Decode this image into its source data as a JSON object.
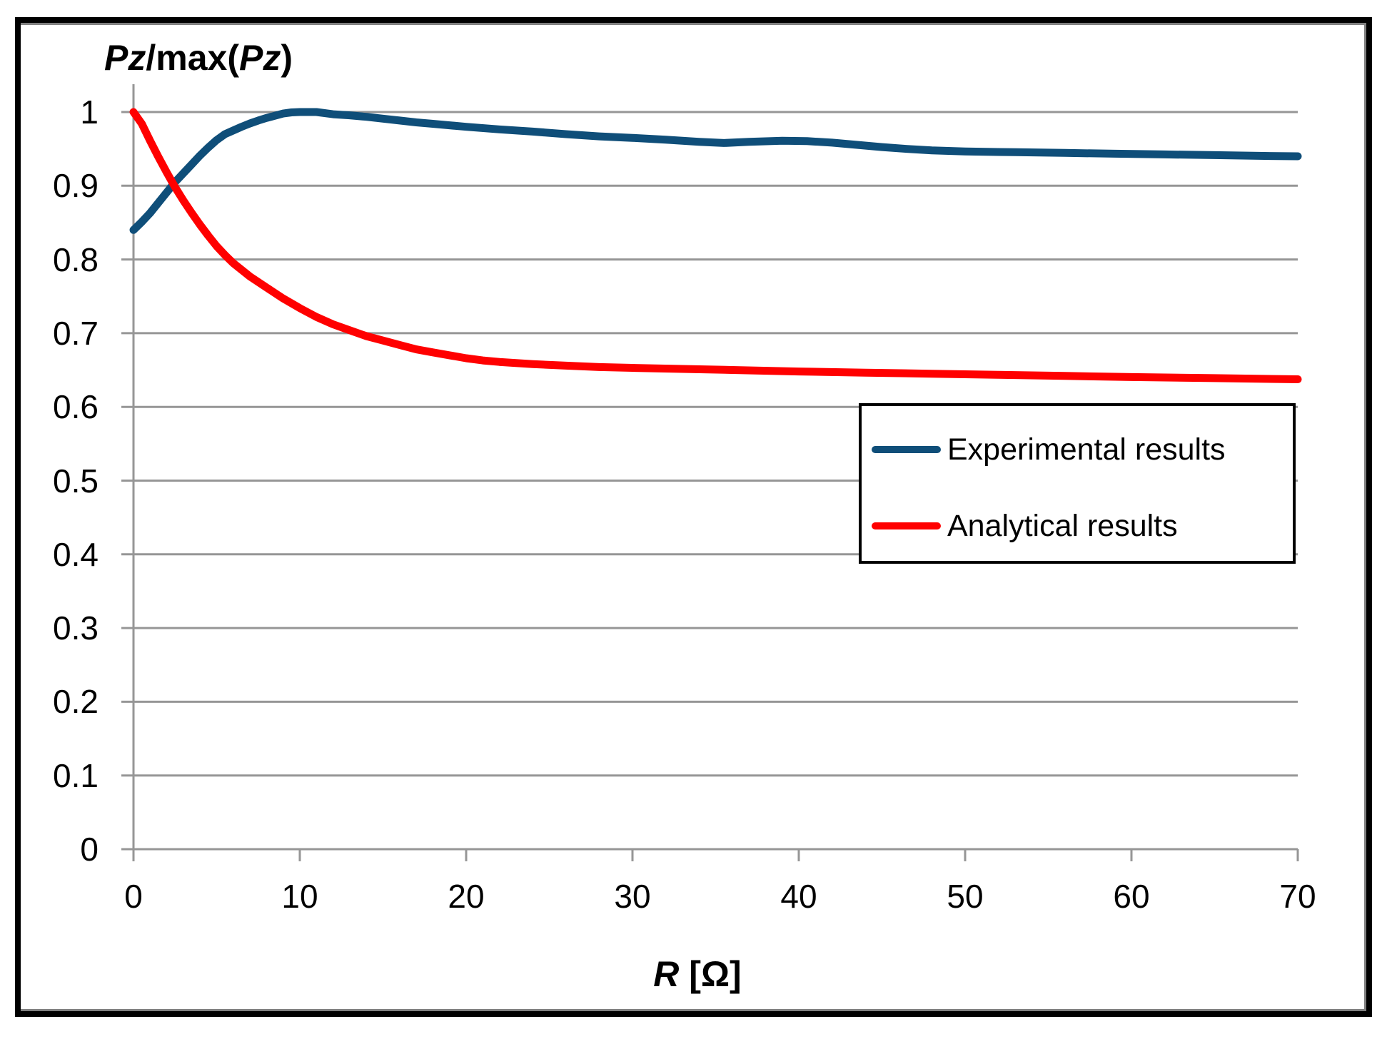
{
  "chart_data": {
    "type": "line",
    "title": "Pz/max(Pz)",
    "title_parts": [
      "Pz",
      "/max(",
      "Pz",
      ")"
    ],
    "xlabel": "R [Ω]",
    "xlabel_parts": [
      "R",
      " [Ω]"
    ],
    "ylabel": "Pz/max(Pz)",
    "xlim": [
      0,
      70
    ],
    "ylim": [
      0,
      1
    ],
    "x_ticks": [
      "0",
      "10",
      "20",
      "30",
      "40",
      "50",
      "60",
      "70"
    ],
    "y_ticks": [
      "1",
      "0.9",
      "0.8",
      "0.7",
      "0.6",
      "0.5",
      "0.4",
      "0.3",
      "0.2",
      "0.1",
      "0"
    ],
    "grid": "horizontal",
    "legend_position": "middle-right",
    "series": [
      {
        "name": "Experimental results",
        "color": "#0F4E79",
        "points": [
          [
            0,
            0.84
          ],
          [
            0.5,
            0.851
          ],
          [
            1,
            0.863
          ],
          [
            1.5,
            0.877
          ],
          [
            2,
            0.891
          ],
          [
            2.5,
            0.905
          ],
          [
            3,
            0.917
          ],
          [
            3.5,
            0.929
          ],
          [
            4,
            0.941
          ],
          [
            4.5,
            0.952
          ],
          [
            5,
            0.962
          ],
          [
            5.5,
            0.97
          ],
          [
            6,
            0.975
          ],
          [
            6.5,
            0.98
          ],
          [
            7,
            0.9845
          ],
          [
            7.5,
            0.9885
          ],
          [
            8,
            0.992
          ],
          [
            8.5,
            0.995
          ],
          [
            9,
            0.998
          ],
          [
            9.5,
            0.9995
          ],
          [
            10,
            1.0
          ],
          [
            11,
            1.0
          ],
          [
            12,
            0.997
          ],
          [
            13,
            0.9955
          ],
          [
            14,
            0.9935
          ],
          [
            15,
            0.991
          ],
          [
            16,
            0.9885
          ],
          [
            17,
            0.986
          ],
          [
            18,
            0.984
          ],
          [
            19,
            0.982
          ],
          [
            20,
            0.98
          ],
          [
            22,
            0.9765
          ],
          [
            24,
            0.9735
          ],
          [
            26,
            0.97
          ],
          [
            28,
            0.967
          ],
          [
            30,
            0.965
          ],
          [
            32,
            0.9625
          ],
          [
            34,
            0.9595
          ],
          [
            35.5,
            0.958
          ],
          [
            37,
            0.9595
          ],
          [
            39,
            0.961
          ],
          [
            40.5,
            0.9605
          ],
          [
            42,
            0.9585
          ],
          [
            43.5,
            0.9555
          ],
          [
            45,
            0.9525
          ],
          [
            46.5,
            0.95
          ],
          [
            48,
            0.948
          ],
          [
            50,
            0.9465
          ],
          [
            53,
            0.9455
          ],
          [
            56,
            0.9445
          ],
          [
            59,
            0.9435
          ],
          [
            62,
            0.9425
          ],
          [
            65,
            0.9415
          ],
          [
            68,
            0.9405
          ],
          [
            70,
            0.94
          ]
        ]
      },
      {
        "name": "Analytical results",
        "color": "#FF0000",
        "points": [
          [
            0,
            1.0
          ],
          [
            0.5,
            0.984
          ],
          [
            1,
            0.961
          ],
          [
            1.5,
            0.939
          ],
          [
            2,
            0.918
          ],
          [
            2.5,
            0.898
          ],
          [
            3,
            0.88
          ],
          [
            3.5,
            0.863
          ],
          [
            4,
            0.847
          ],
          [
            4.5,
            0.832
          ],
          [
            5,
            0.818
          ],
          [
            5.5,
            0.806
          ],
          [
            6,
            0.795
          ],
          [
            6.5,
            0.786
          ],
          [
            7,
            0.777
          ],
          [
            8,
            0.762
          ],
          [
            9,
            0.747
          ],
          [
            10,
            0.734
          ],
          [
            11,
            0.722
          ],
          [
            12,
            0.712
          ],
          [
            13,
            0.704
          ],
          [
            14,
            0.696
          ],
          [
            15,
            0.69
          ],
          [
            16,
            0.684
          ],
          [
            17,
            0.678
          ],
          [
            18,
            0.674
          ],
          [
            19,
            0.67
          ],
          [
            20,
            0.666
          ],
          [
            21,
            0.663
          ],
          [
            22,
            0.661
          ],
          [
            24,
            0.658
          ],
          [
            26,
            0.656
          ],
          [
            28,
            0.654
          ],
          [
            30,
            0.653
          ],
          [
            33,
            0.6515
          ],
          [
            36,
            0.65
          ],
          [
            40,
            0.648
          ],
          [
            44,
            0.6465
          ],
          [
            48,
            0.645
          ],
          [
            52,
            0.6435
          ],
          [
            56,
            0.642
          ],
          [
            60,
            0.6405
          ],
          [
            65,
            0.639
          ],
          [
            70,
            0.6375
          ]
        ]
      }
    ]
  },
  "colors": {
    "gridline": "#969696",
    "axis": "#969696",
    "frame_border": "#000000",
    "background": "#FFFFFF",
    "legend_border": "#000000",
    "text": "#000000"
  }
}
